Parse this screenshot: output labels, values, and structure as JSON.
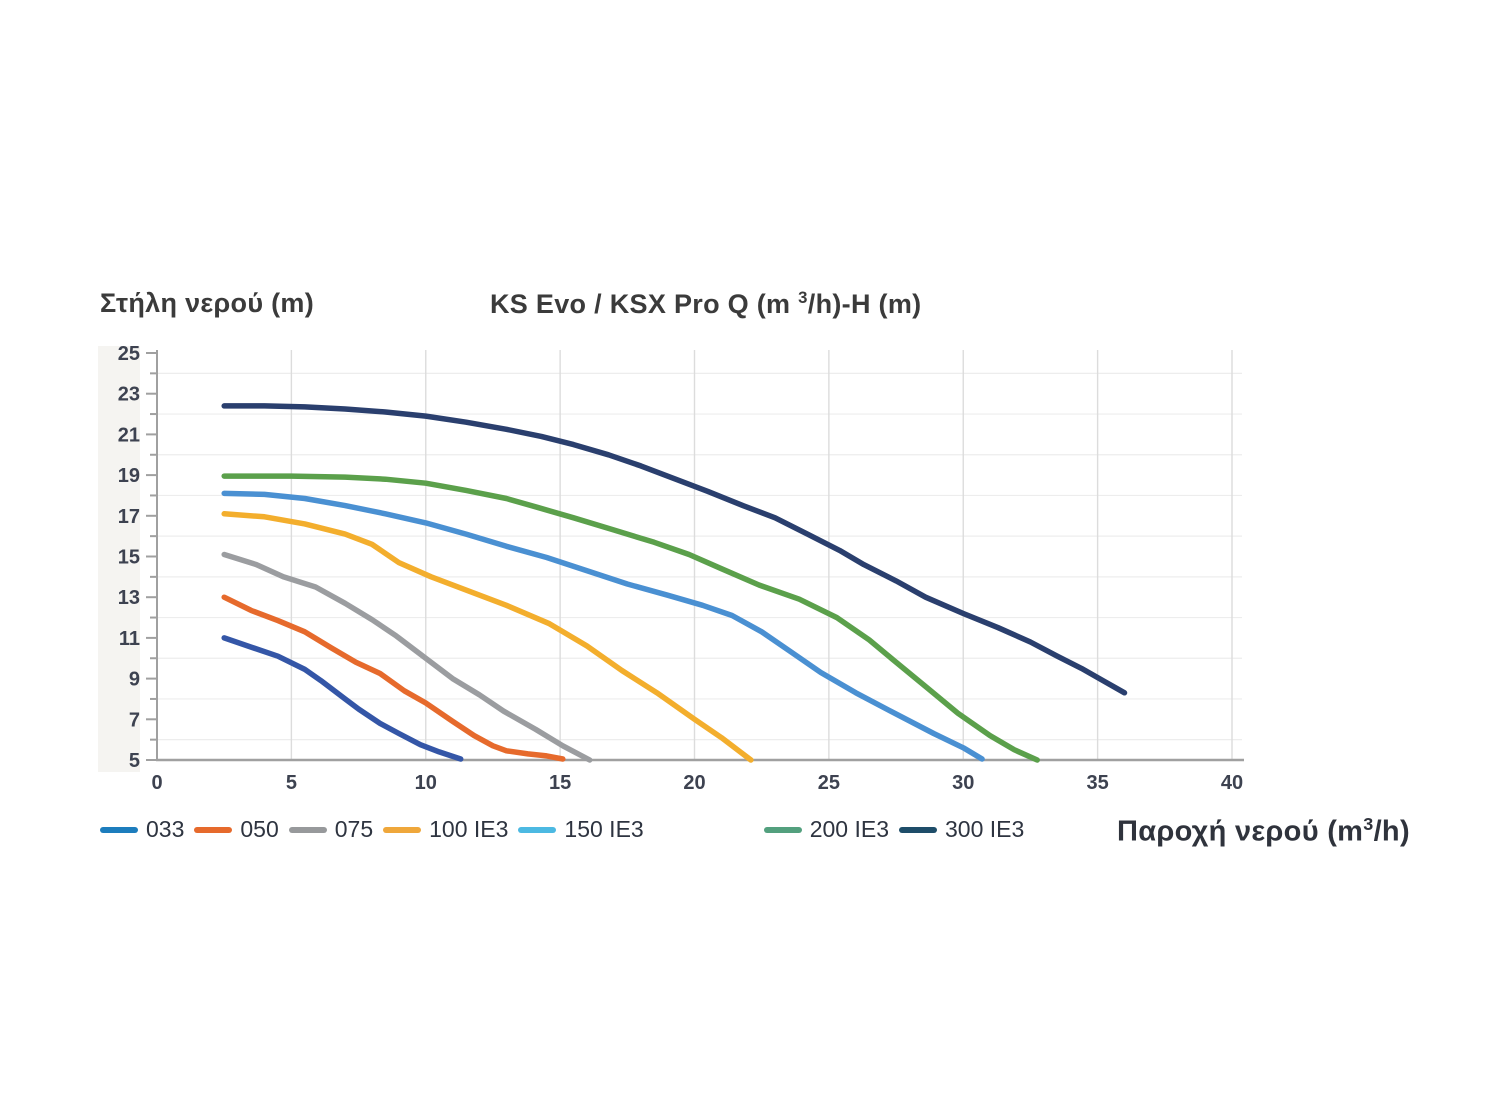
{
  "chart_data": {
    "type": "line",
    "title": {
      "prefix": "KS Evo / KSX Pro Q (m ",
      "sup": "3",
      "suffix": "/h)-H (m)"
    },
    "y_axis_label": "Στήλη νερού (m)",
    "x_axis_label": {
      "prefix": "Παροχή νερού (m",
      "sup": "3",
      "suffix": "/h)"
    },
    "xlim": [
      0,
      40
    ],
    "ylim": [
      5,
      25
    ],
    "x_ticks": [
      0,
      5,
      10,
      15,
      20,
      25,
      30,
      35,
      40
    ],
    "y_ticks": [
      25,
      23,
      21,
      19,
      17,
      15,
      13,
      11,
      9,
      7,
      5
    ],
    "grid": {
      "vertical_at": [
        5,
        10,
        15,
        20,
        25,
        30,
        35,
        40
      ],
      "horizontal_at": [
        6,
        8,
        10,
        12,
        14,
        16,
        18,
        20,
        22,
        24
      ]
    },
    "colors": {
      "axis": "#a0a0a0",
      "tick_text": "#3d4250",
      "grid_vertical": "#dcdcdc",
      "grid_horizontal": "#ededed",
      "label_band": "#f5f4f1"
    },
    "series": [
      {
        "name": "033",
        "color": "#3456a7",
        "legend_color": "#1d7dbd",
        "points": [
          [
            2.5,
            11.0
          ],
          [
            3.5,
            10.55
          ],
          [
            4.5,
            10.1
          ],
          [
            5.5,
            9.45
          ],
          [
            6.1,
            8.9
          ],
          [
            7,
            8.0
          ],
          [
            7.5,
            7.5
          ],
          [
            8.3,
            6.8
          ],
          [
            9,
            6.3
          ],
          [
            9.8,
            5.75
          ],
          [
            10.5,
            5.4
          ],
          [
            11.3,
            5.05
          ]
        ]
      },
      {
        "name": "050",
        "color": "#e66a2c",
        "legend_color": "#e66a2c",
        "points": [
          [
            2.5,
            13.0
          ],
          [
            3.5,
            12.35
          ],
          [
            4.5,
            11.85
          ],
          [
            5.5,
            11.3
          ],
          [
            6.5,
            10.5
          ],
          [
            7.4,
            9.8
          ],
          [
            8.3,
            9.25
          ],
          [
            9.2,
            8.4
          ],
          [
            10,
            7.8
          ],
          [
            11,
            6.9
          ],
          [
            11.8,
            6.2
          ],
          [
            12.5,
            5.7
          ],
          [
            13,
            5.45
          ],
          [
            13.8,
            5.3
          ],
          [
            14.5,
            5.2
          ],
          [
            15.1,
            5.05
          ]
        ]
      },
      {
        "name": "075",
        "color": "#9b9da0",
        "legend_color": "#97999b",
        "points": [
          [
            2.5,
            15.1
          ],
          [
            3.7,
            14.6
          ],
          [
            4.7,
            14.0
          ],
          [
            5.9,
            13.5
          ],
          [
            7,
            12.7
          ],
          [
            8,
            11.9
          ],
          [
            8.9,
            11.1
          ],
          [
            10,
            10.0
          ],
          [
            11,
            9.0
          ],
          [
            12,
            8.2
          ],
          [
            12.9,
            7.4
          ],
          [
            14.1,
            6.5
          ],
          [
            15.1,
            5.7
          ],
          [
            16.1,
            5.0
          ]
        ]
      },
      {
        "name": "100 IE3",
        "color": "#f3ae2d",
        "legend_color": "#efa73b",
        "points": [
          [
            2.5,
            17.1
          ],
          [
            4,
            16.95
          ],
          [
            5.5,
            16.6
          ],
          [
            7,
            16.1
          ],
          [
            8,
            15.6
          ],
          [
            9,
            14.7
          ],
          [
            10.2,
            14.0
          ],
          [
            11.5,
            13.35
          ],
          [
            13,
            12.6
          ],
          [
            14.6,
            11.7
          ],
          [
            16,
            10.6
          ],
          [
            17.3,
            9.4
          ],
          [
            18.6,
            8.3
          ],
          [
            20,
            7.0
          ],
          [
            21,
            6.1
          ],
          [
            21.6,
            5.5
          ],
          [
            22.1,
            5.0
          ]
        ]
      },
      {
        "name": "150 IE3",
        "color": "#4a90d2",
        "legend_color": "#4cb9e2",
        "points": [
          [
            2.5,
            18.1
          ],
          [
            4,
            18.05
          ],
          [
            5.5,
            17.85
          ],
          [
            7,
            17.5
          ],
          [
            8.5,
            17.1
          ],
          [
            10,
            16.65
          ],
          [
            11.5,
            16.1
          ],
          [
            13,
            15.5
          ],
          [
            14.5,
            14.95
          ],
          [
            16,
            14.3
          ],
          [
            17.5,
            13.65
          ],
          [
            19,
            13.1
          ],
          [
            20.3,
            12.6
          ],
          [
            21.4,
            12.1
          ],
          [
            22.5,
            11.3
          ],
          [
            23.6,
            10.3
          ],
          [
            24.7,
            9.3
          ],
          [
            26,
            8.3
          ],
          [
            27.3,
            7.4
          ],
          [
            28.9,
            6.3
          ],
          [
            30,
            5.6
          ],
          [
            30.7,
            5.05
          ]
        ]
      },
      {
        "name": "200 IE3",
        "color": "#5ba04b",
        "legend_color": "#53a07e",
        "points": [
          [
            2.5,
            18.95
          ],
          [
            5,
            18.95
          ],
          [
            7,
            18.9
          ],
          [
            8.5,
            18.8
          ],
          [
            10,
            18.6
          ],
          [
            11.5,
            18.25
          ],
          [
            13,
            17.85
          ],
          [
            14.2,
            17.4
          ],
          [
            15.5,
            16.9
          ],
          [
            17,
            16.3
          ],
          [
            18.5,
            15.7
          ],
          [
            19.8,
            15.1
          ],
          [
            21,
            14.4
          ],
          [
            22.4,
            13.6
          ],
          [
            23.9,
            12.9
          ],
          [
            25.3,
            12.0
          ],
          [
            26.5,
            10.9
          ],
          [
            27.5,
            9.8
          ],
          [
            28.7,
            8.5
          ],
          [
            29.8,
            7.3
          ],
          [
            31,
            6.2
          ],
          [
            31.9,
            5.5
          ],
          [
            32.75,
            5.0
          ]
        ]
      },
      {
        "name": "300 IE3",
        "color": "#2a3f6e",
        "legend_color": "#1e4d69",
        "points": [
          [
            2.5,
            22.4
          ],
          [
            4,
            22.4
          ],
          [
            5.5,
            22.35
          ],
          [
            7,
            22.25
          ],
          [
            8.5,
            22.1
          ],
          [
            10,
            21.9
          ],
          [
            11.5,
            21.6
          ],
          [
            13,
            21.25
          ],
          [
            14.3,
            20.9
          ],
          [
            15.5,
            20.5
          ],
          [
            16.8,
            20.0
          ],
          [
            18,
            19.45
          ],
          [
            19.3,
            18.8
          ],
          [
            20.5,
            18.2
          ],
          [
            21.8,
            17.5
          ],
          [
            23,
            16.9
          ],
          [
            24.2,
            16.1
          ],
          [
            25.4,
            15.3
          ],
          [
            26.3,
            14.6
          ],
          [
            27.5,
            13.8
          ],
          [
            28.6,
            13.0
          ],
          [
            30,
            12.2
          ],
          [
            31.3,
            11.5
          ],
          [
            32.5,
            10.8
          ],
          [
            33.5,
            10.1
          ],
          [
            34.4,
            9.5
          ],
          [
            35.2,
            8.9
          ],
          [
            36,
            8.3
          ]
        ]
      }
    ]
  }
}
